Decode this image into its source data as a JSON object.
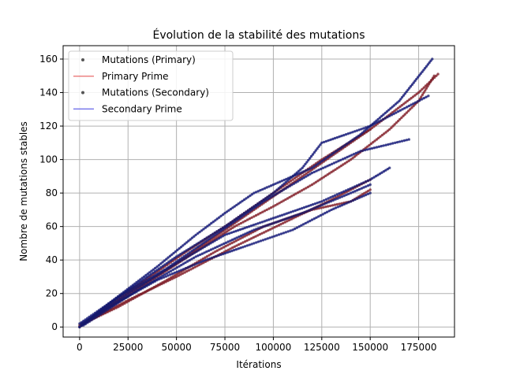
{
  "chart_data": {
    "type": "scatter",
    "title": "Évolution de la stabilité des mutations",
    "xlabel": "Itérations",
    "ylabel": "Nombre de mutations stables",
    "xlim": [
      -8500,
      193500
    ],
    "ylim": [
      -6,
      168
    ],
    "xticks": [
      0,
      25000,
      50000,
      75000,
      100000,
      125000,
      150000,
      175000
    ],
    "xtick_labels": [
      "0",
      "25000",
      "50000",
      "75000",
      "100000",
      "125000",
      "150000",
      "175000"
    ],
    "yticks": [
      0,
      20,
      40,
      60,
      80,
      100,
      120,
      140,
      160
    ],
    "ytick_labels": [
      "0",
      "20",
      "40",
      "60",
      "80",
      "100",
      "120",
      "140",
      "160"
    ],
    "grid": true,
    "legend_position": "top-left",
    "colors": {
      "primary_points": "#7a1f2a",
      "primary_line": "#e03030",
      "secondary_points": "#141a6e",
      "secondary_line": "#2020e0",
      "legend_marker": "#555555"
    },
    "legend": [
      {
        "label": "Mutations (Primary)",
        "kind": "marker"
      },
      {
        "label": "Primary Prime",
        "kind": "line",
        "color": "#e03030"
      },
      {
        "label": "Mutations (Secondary)",
        "kind": "marker"
      },
      {
        "label": "Secondary Prime",
        "kind": "line",
        "color": "#2020e0"
      }
    ],
    "series": [
      {
        "name": "Primary Prime",
        "kind": "line",
        "traces": [
          [
            [
              0,
              0
            ],
            [
              10000,
              8
            ],
            [
              25000,
              20
            ],
            [
              50000,
              38
            ],
            [
              75000,
              58
            ],
            [
              100000,
              78
            ],
            [
              125000,
              98
            ],
            [
              150000,
              118
            ],
            [
              175000,
              140
            ],
            [
              185000,
              151
            ]
          ],
          [
            [
              0,
              1
            ],
            [
              20000,
              12
            ],
            [
              45000,
              28
            ],
            [
              70000,
              45
            ],
            [
              95000,
              60
            ],
            [
              120000,
              70
            ],
            [
              140000,
              75
            ],
            [
              150000,
              82
            ]
          ],
          [
            [
              2000,
              2
            ],
            [
              25000,
              16
            ],
            [
              50000,
              30
            ],
            [
              80000,
              48
            ],
            [
              105000,
              62
            ],
            [
              130000,
              76
            ],
            [
              150000,
              88
            ]
          ],
          [
            [
              1000,
              1
            ],
            [
              20000,
              15
            ],
            [
              40000,
              30
            ],
            [
              60000,
              45
            ],
            [
              80000,
              60
            ],
            [
              100000,
              72
            ],
            [
              120000,
              85
            ],
            [
              140000,
              100
            ],
            [
              160000,
              118
            ],
            [
              175000,
              135
            ],
            [
              183000,
              150
            ]
          ],
          [
            [
              3000,
              3
            ],
            [
              30000,
              25
            ],
            [
              55000,
              45
            ],
            [
              75000,
              60
            ],
            [
              100000,
              80
            ],
            [
              125000,
              100
            ],
            [
              150000,
              118
            ]
          ]
        ]
      },
      {
        "name": "Secondary Prime",
        "kind": "line",
        "traces": [
          [
            [
              0,
              0
            ],
            [
              15000,
              14
            ],
            [
              40000,
              36
            ],
            [
              60000,
              55
            ],
            [
              75000,
              68
            ],
            [
              90000,
              80
            ],
            [
              120000,
              95
            ],
            [
              145000,
              115
            ],
            [
              165000,
              135
            ],
            [
              182000,
              160
            ]
          ],
          [
            [
              1000,
              1
            ],
            [
              25000,
              20
            ],
            [
              50000,
              38
            ],
            [
              75000,
              55
            ],
            [
              100000,
              65
            ],
            [
              125000,
              75
            ],
            [
              150000,
              88
            ],
            [
              160000,
              95
            ]
          ],
          [
            [
              0,
              2
            ],
            [
              20000,
              18
            ],
            [
              45000,
              35
            ],
            [
              70000,
              55
            ],
            [
              95000,
              75
            ],
            [
              120000,
              92
            ],
            [
              145000,
              105
            ],
            [
              170000,
              112
            ]
          ],
          [
            [
              2000,
              1
            ],
            [
              30000,
              22
            ],
            [
              60000,
              42
            ],
            [
              90000,
              58
            ],
            [
              115000,
              68
            ],
            [
              140000,
              80
            ],
            [
              150000,
              85
            ]
          ],
          [
            [
              0,
              0
            ],
            [
              25000,
              22
            ],
            [
              50000,
              42
            ],
            [
              75000,
              60
            ],
            [
              100000,
              80
            ],
            [
              115000,
              95
            ],
            [
              125000,
              110
            ],
            [
              150000,
              120
            ],
            [
              170000,
              132
            ],
            [
              180000,
              138
            ]
          ],
          [
            [
              1000,
              2
            ],
            [
              20000,
              15
            ],
            [
              40000,
              28
            ],
            [
              65000,
              40
            ],
            [
              90000,
              50
            ],
            [
              110000,
              58
            ],
            [
              130000,
              70
            ],
            [
              150000,
              80
            ]
          ]
        ]
      },
      {
        "name": "Mutations (Primary)",
        "kind": "scatter",
        "traces": [
          [
            [
              0,
              0
            ],
            [
              10000,
              8
            ],
            [
              25000,
              20
            ],
            [
              50000,
              38
            ],
            [
              75000,
              58
            ],
            [
              100000,
              78
            ],
            [
              125000,
              98
            ],
            [
              150000,
              118
            ],
            [
              175000,
              140
            ],
            [
              185000,
              151
            ]
          ],
          [
            [
              0,
              1
            ],
            [
              20000,
              12
            ],
            [
              45000,
              28
            ],
            [
              70000,
              45
            ],
            [
              95000,
              60
            ],
            [
              120000,
              70
            ],
            [
              140000,
              75
            ],
            [
              150000,
              82
            ]
          ],
          [
            [
              2000,
              2
            ],
            [
              25000,
              16
            ],
            [
              50000,
              30
            ],
            [
              80000,
              48
            ],
            [
              105000,
              62
            ],
            [
              130000,
              76
            ],
            [
              150000,
              88
            ]
          ],
          [
            [
              1000,
              1
            ],
            [
              20000,
              15
            ],
            [
              40000,
              30
            ],
            [
              60000,
              45
            ],
            [
              80000,
              60
            ],
            [
              100000,
              72
            ],
            [
              120000,
              85
            ],
            [
              140000,
              100
            ],
            [
              160000,
              118
            ],
            [
              175000,
              135
            ],
            [
              183000,
              150
            ]
          ],
          [
            [
              3000,
              3
            ],
            [
              30000,
              25
            ],
            [
              55000,
              45
            ],
            [
              75000,
              60
            ],
            [
              100000,
              80
            ],
            [
              125000,
              100
            ],
            [
              150000,
              118
            ]
          ]
        ]
      },
      {
        "name": "Mutations (Secondary)",
        "kind": "scatter",
        "traces": [
          [
            [
              0,
              0
            ],
            [
              15000,
              14
            ],
            [
              40000,
              36
            ],
            [
              60000,
              55
            ],
            [
              75000,
              68
            ],
            [
              90000,
              80
            ],
            [
              120000,
              95
            ],
            [
              145000,
              115
            ],
            [
              165000,
              135
            ],
            [
              182000,
              160
            ]
          ],
          [
            [
              1000,
              1
            ],
            [
              25000,
              20
            ],
            [
              50000,
              38
            ],
            [
              75000,
              55
            ],
            [
              100000,
              65
            ],
            [
              125000,
              75
            ],
            [
              150000,
              88
            ],
            [
              160000,
              95
            ]
          ],
          [
            [
              0,
              2
            ],
            [
              20000,
              18
            ],
            [
              45000,
              35
            ],
            [
              70000,
              55
            ],
            [
              95000,
              75
            ],
            [
              120000,
              92
            ],
            [
              145000,
              105
            ],
            [
              170000,
              112
            ]
          ],
          [
            [
              2000,
              1
            ],
            [
              30000,
              22
            ],
            [
              60000,
              42
            ],
            [
              90000,
              58
            ],
            [
              115000,
              68
            ],
            [
              140000,
              80
            ],
            [
              150000,
              85
            ]
          ],
          [
            [
              0,
              0
            ],
            [
              25000,
              22
            ],
            [
              50000,
              42
            ],
            [
              75000,
              60
            ],
            [
              100000,
              80
            ],
            [
              115000,
              95
            ],
            [
              125000,
              110
            ],
            [
              150000,
              120
            ],
            [
              170000,
              132
            ],
            [
              180000,
              138
            ]
          ],
          [
            [
              1000,
              2
            ],
            [
              20000,
              15
            ],
            [
              40000,
              28
            ],
            [
              65000,
              40
            ],
            [
              90000,
              50
            ],
            [
              110000,
              58
            ],
            [
              130000,
              70
            ],
            [
              150000,
              80
            ]
          ]
        ]
      }
    ]
  }
}
